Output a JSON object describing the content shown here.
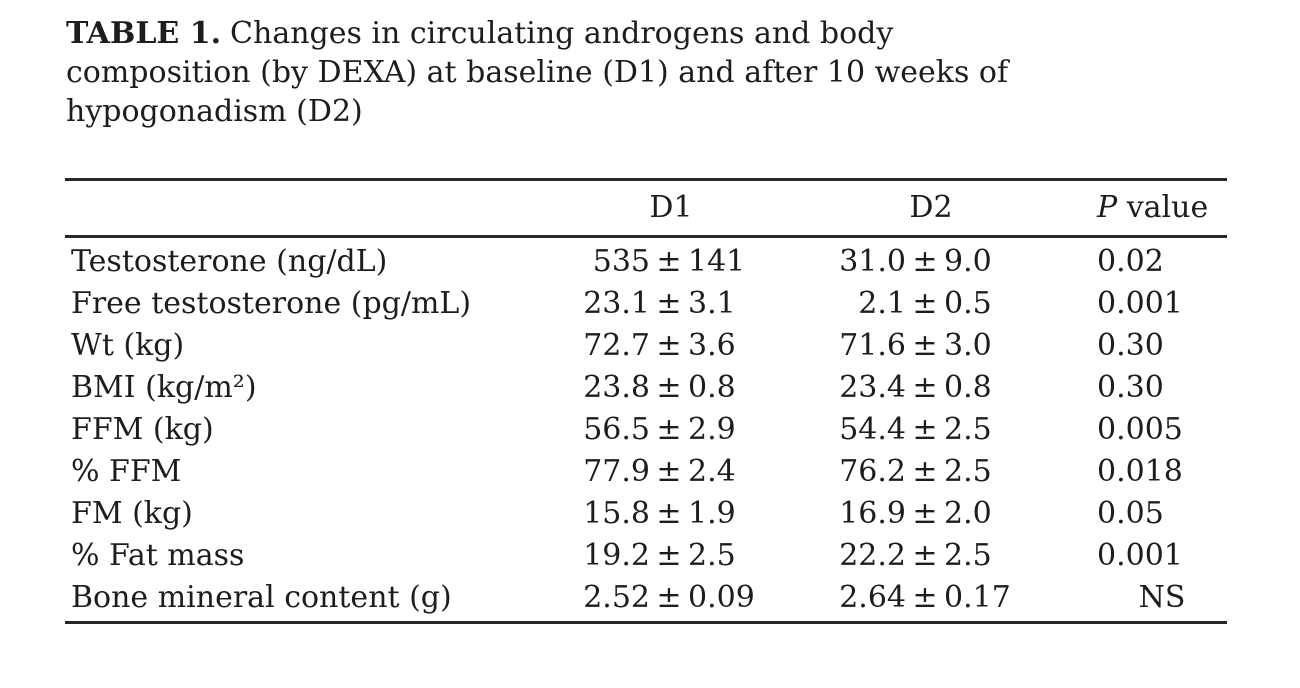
{
  "title": {
    "label": "TABLE 1.",
    "line1_rest": "Changes in circulating androgens and body",
    "line2": "composition (by DEXA) at baseline (D1) and after 10 weeks of",
    "line3": "hypogonadism (D2)"
  },
  "table": {
    "pm": "±",
    "columns": {
      "label": "",
      "d1": "D1",
      "d2": "D2",
      "p_italic": "P",
      "p_rest": " value"
    },
    "rows": [
      {
        "label": "Testosterone (ng/dL)",
        "d1_mean": "535",
        "d1_sd": "141",
        "d2_mean": "31.0",
        "d2_sd": "9.0",
        "p": "0.02"
      },
      {
        "label": "Free testosterone (pg/mL)",
        "d1_mean": "23.1",
        "d1_sd": "3.1",
        "d2_mean": "2.1",
        "d2_sd": "0.5",
        "p": "0.001"
      },
      {
        "label": "Wt (kg)",
        "d1_mean": "72.7",
        "d1_sd": "3.6",
        "d2_mean": "71.6",
        "d2_sd": "3.0",
        "p": "0.30"
      },
      {
        "label": "BMI (kg/m²)",
        "d1_mean": "23.8",
        "d1_sd": "0.8",
        "d2_mean": "23.4",
        "d2_sd": "0.8",
        "p": "0.30"
      },
      {
        "label": "FFM (kg)",
        "d1_mean": "56.5",
        "d1_sd": "2.9",
        "d2_mean": "54.4",
        "d2_sd": "2.5",
        "p": "0.005"
      },
      {
        "label": "% FFM",
        "d1_mean": "77.9",
        "d1_sd": "2.4",
        "d2_mean": "76.2",
        "d2_sd": "2.5",
        "p": "0.018"
      },
      {
        "label": "FM (kg)",
        "d1_mean": "15.8",
        "d1_sd": "1.9",
        "d2_mean": "16.9",
        "d2_sd": "2.0",
        "p": "0.05"
      },
      {
        "label": "% Fat mass",
        "d1_mean": "19.2",
        "d1_sd": "2.5",
        "d2_mean": "22.2",
        "d2_sd": "2.5",
        "p": "0.001"
      },
      {
        "label": "Bone mineral content (g)",
        "d1_mean": "2.52",
        "d1_sd": "0.09",
        "d2_mean": "2.64",
        "d2_sd": "0.17",
        "p": "NS"
      }
    ]
  },
  "colors": {
    "background": "#ffffff",
    "text": "#1d1d1d",
    "rule": "#272727"
  }
}
